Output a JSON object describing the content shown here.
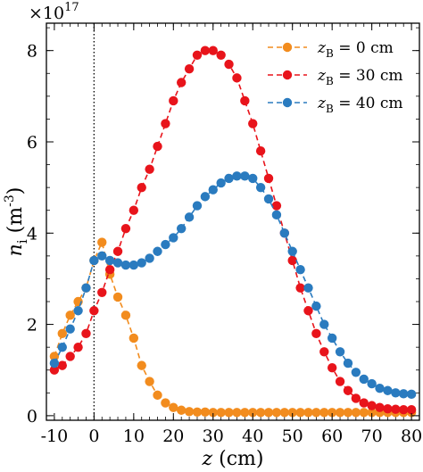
{
  "chart_data": {
    "type": "line",
    "xlabel": "z (cm)",
    "ylabel": "n_i (m^-3)",
    "y_scale_label": "×10^17",
    "xlim": [
      -12,
      82
    ],
    "ylim": [
      -0.1,
      8.6
    ],
    "x_ticks": [
      -10,
      0,
      10,
      20,
      30,
      40,
      50,
      60,
      70,
      80
    ],
    "x_tick_labels": [
      "-10",
      "0",
      "10",
      "20",
      "30",
      "40",
      "50",
      "60",
      "70",
      "80"
    ],
    "y_ticks": [
      0,
      2,
      4,
      6,
      8
    ],
    "y_tick_labels": [
      "0",
      "2",
      "4",
      "6",
      "8"
    ],
    "x_minor_step": 2,
    "y_minor_step": 0.5,
    "reference_line_x": 0,
    "legend_position": "top-right",
    "series": [
      {
        "name": "z_B = 0 cm",
        "legend_var": "z",
        "legend_sub": "B",
        "legend_rest": " = 0 cm",
        "color": "#f28c1e",
        "x": [
          -10,
          -8,
          -6,
          -4,
          -2,
          0,
          2,
          4,
          6,
          8,
          10,
          12,
          14,
          16,
          18,
          20,
          22,
          24,
          26,
          28,
          30,
          32,
          34,
          36,
          38,
          40,
          42,
          44,
          46,
          48,
          50,
          52,
          54,
          56,
          58,
          60,
          62,
          64,
          66,
          68,
          70,
          72,
          74,
          76,
          78,
          80
        ],
        "y": [
          1.3,
          1.8,
          2.2,
          2.5,
          2.8,
          3.4,
          3.8,
          3.1,
          2.6,
          2.2,
          1.7,
          1.1,
          0.75,
          0.45,
          0.28,
          0.18,
          0.12,
          0.09,
          0.08,
          0.08,
          0.07,
          0.07,
          0.07,
          0.07,
          0.07,
          0.07,
          0.07,
          0.07,
          0.07,
          0.07,
          0.07,
          0.07,
          0.07,
          0.07,
          0.07,
          0.07,
          0.07,
          0.07,
          0.07,
          0.07,
          0.07,
          0.07,
          0.07,
          0.07,
          0.07,
          0.07
        ]
      },
      {
        "name": "z_B = 30 cm",
        "legend_var": "z",
        "legend_sub": "B",
        "legend_rest": " = 30 cm",
        "color": "#e8141b",
        "x": [
          -10,
          -8,
          -6,
          -4,
          -2,
          0,
          2,
          4,
          6,
          8,
          10,
          12,
          14,
          16,
          18,
          20,
          22,
          24,
          26,
          28,
          30,
          32,
          34,
          36,
          38,
          40,
          42,
          44,
          46,
          48,
          50,
          52,
          54,
          56,
          58,
          60,
          62,
          64,
          66,
          68,
          70,
          72,
          74,
          76,
          78,
          80
        ],
        "y": [
          1.0,
          1.1,
          1.3,
          1.5,
          1.8,
          2.3,
          2.7,
          3.2,
          3.6,
          4.1,
          4.5,
          5.0,
          5.4,
          5.9,
          6.4,
          6.9,
          7.3,
          7.6,
          7.9,
          8.0,
          8.0,
          7.9,
          7.7,
          7.4,
          6.9,
          6.4,
          5.8,
          5.2,
          4.6,
          4.0,
          3.4,
          2.8,
          2.3,
          1.8,
          1.4,
          1.05,
          0.75,
          0.55,
          0.38,
          0.28,
          0.22,
          0.18,
          0.15,
          0.14,
          0.13,
          0.13
        ]
      },
      {
        "name": "z_B = 40 cm",
        "legend_var": "z",
        "legend_sub": "B",
        "legend_rest": " = 40 cm",
        "color": "#2a7bbf",
        "x": [
          -10,
          -8,
          -6,
          -4,
          -2,
          0,
          2,
          4,
          6,
          8,
          10,
          12,
          14,
          16,
          18,
          20,
          22,
          24,
          26,
          28,
          30,
          32,
          34,
          36,
          38,
          40,
          42,
          44,
          46,
          48,
          50,
          52,
          54,
          56,
          58,
          60,
          62,
          64,
          66,
          68,
          70,
          72,
          74,
          76,
          78,
          80
        ],
        "y": [
          1.15,
          1.5,
          1.9,
          2.3,
          2.8,
          3.4,
          3.5,
          3.4,
          3.35,
          3.3,
          3.3,
          3.35,
          3.45,
          3.6,
          3.75,
          3.9,
          4.1,
          4.35,
          4.6,
          4.8,
          4.95,
          5.1,
          5.2,
          5.25,
          5.25,
          5.2,
          5.0,
          4.75,
          4.4,
          4.0,
          3.6,
          3.2,
          2.8,
          2.4,
          2.0,
          1.7,
          1.4,
          1.15,
          0.95,
          0.8,
          0.7,
          0.6,
          0.55,
          0.5,
          0.48,
          0.47
        ]
      }
    ]
  }
}
